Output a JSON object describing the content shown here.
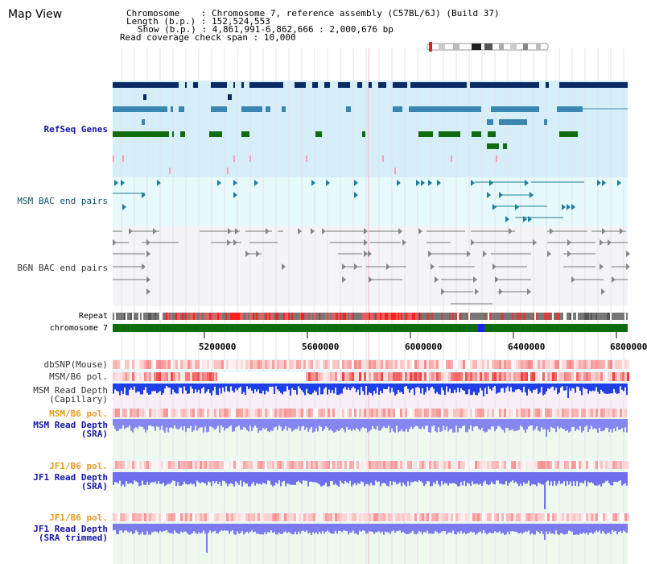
{
  "header": {
    "title": "Map View",
    "chromosome_label": "Chromosome",
    "chromosome_value": "Chromosome 7, reference assembly (C57BL/6J) (Build 37)",
    "length_label": "Length (b.p.)",
    "length_value": "152,524,553",
    "show_label": "Show (b.p.)",
    "show_value": "4,861,991-6,862,666 : 2,000,676 bp",
    "coverage_label": "Read coverage check span",
    "coverage_value": "10,000"
  },
  "tracks": {
    "refseq": "RefSeq Genes",
    "msm_bac": "MSM BAC end pairs",
    "b6n_bac": "B6N BAC end pairs",
    "repeat": "Repeat",
    "chromosome": "chromosome 7",
    "dbsnp": "dbSNP(Mouse)",
    "msm_b6_pol_1": "MSM/B6 pol.",
    "msm_read_depth_cap": "MSM Read Depth\n(Capillary)",
    "msm_b6_pol_2": "MSM/B6 pol.",
    "msm_read_depth_sra": "MSM Read Depth\n(SRA)",
    "jf1_b6_pol_1": "JF1/B6 pol.",
    "jf1_read_depth_sra": "JF1 Read Depth\n(SRA)",
    "jf1_b6_pol_2": "JF1/B6 pol.",
    "jf1_read_depth_trim": "JF1 Read Depth\n(SRA trimmed)"
  },
  "axis": {
    "ticks": [
      "5200000",
      "5600000",
      "6000000",
      "6400000",
      "6800000"
    ]
  },
  "colors": {
    "refseq_bg": "#d6eef8",
    "msm_bg": "#e6f9fb",
    "b6n_bg": "#f4f4f7",
    "depth_bg": "#eef9ee",
    "gene_dark": "#0a2a63",
    "gene_mid": "#3a86b0",
    "gene_green": "#116b11",
    "chromosome_bar": "#0e6b0e",
    "read_depth": "#5b5be8"
  }
}
